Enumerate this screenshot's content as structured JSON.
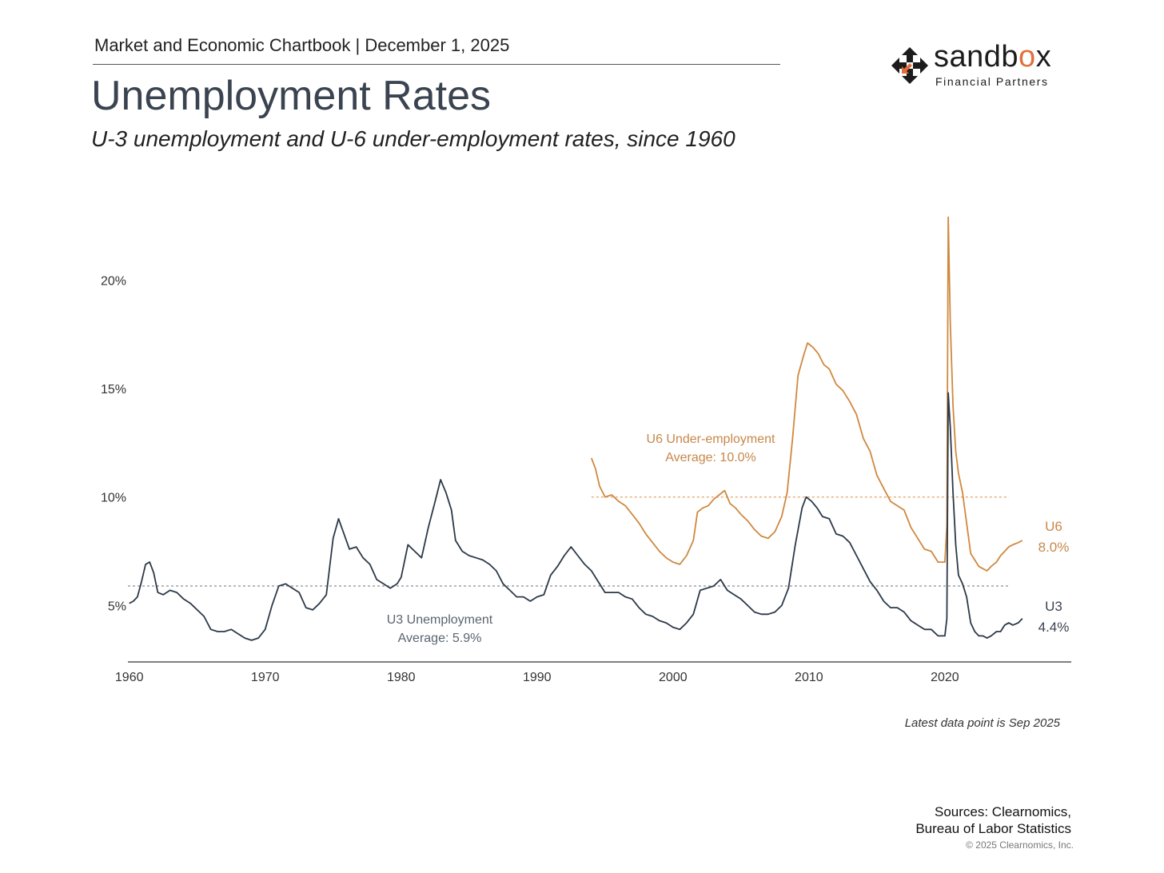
{
  "header": {
    "chartbook_line": "Market and Economic Chartbook | December 1, 2025",
    "title": "Unemployment Rates",
    "subtitle": "U-3 unemployment and U-6 under-employment rates, since 1960"
  },
  "logo": {
    "name_part1": "sandb",
    "name_o": "o",
    "name_part2": "x",
    "tagline": "Financial Partners"
  },
  "footer": {
    "latest_note": "Latest data point is Sep 2025",
    "sources_line1": "Sources: Clearnomics,",
    "sources_line2": "Bureau of Labor Statistics",
    "copyright": "© 2025 Clearnomics, Inc."
  },
  "colors": {
    "u3": "#2b3948",
    "u6": "#d0883f",
    "axis": "#555555",
    "avg_u3": "#8a8f96",
    "avg_u6": "#e0a36a"
  },
  "chart_data": {
    "type": "line",
    "x_range": [
      1959.9,
      2029.3
    ],
    "ylim": [
      2.4,
      23.4
    ],
    "y_ticks": [
      {
        "value": 5,
        "label": "5%"
      },
      {
        "value": 10,
        "label": "10%"
      },
      {
        "value": 15,
        "label": "15%"
      },
      {
        "value": 20,
        "label": "20%"
      }
    ],
    "x_ticks": [
      {
        "value": 1960,
        "label": "1960"
      },
      {
        "value": 1970,
        "label": "1970"
      },
      {
        "value": 1980,
        "label": "1980"
      },
      {
        "value": 1990,
        "label": "1990"
      },
      {
        "value": 2000,
        "label": "2000"
      },
      {
        "value": 2010,
        "label": "2010"
      },
      {
        "value": 2020,
        "label": "2020"
      }
    ],
    "series": [
      {
        "name": "U3 Unemployment",
        "key": "u3",
        "average": 5.9,
        "annotation_line1": "U3 Unemployment",
        "annotation_line2": "Average: 5.9%",
        "end_label": "U3",
        "end_value": "4.4%",
        "points": [
          [
            1960.0,
            5.1
          ],
          [
            1960.3,
            5.2
          ],
          [
            1960.6,
            5.4
          ],
          [
            1960.9,
            6.1
          ],
          [
            1961.2,
            6.9
          ],
          [
            1961.5,
            7.0
          ],
          [
            1961.8,
            6.5
          ],
          [
            1962.1,
            5.6
          ],
          [
            1962.5,
            5.5
          ],
          [
            1963.0,
            5.7
          ],
          [
            1963.5,
            5.6
          ],
          [
            1964.0,
            5.3
          ],
          [
            1964.5,
            5.1
          ],
          [
            1965.0,
            4.8
          ],
          [
            1965.5,
            4.5
          ],
          [
            1966.0,
            3.9
          ],
          [
            1966.5,
            3.8
          ],
          [
            1967.0,
            3.8
          ],
          [
            1967.5,
            3.9
          ],
          [
            1968.0,
            3.7
          ],
          [
            1968.5,
            3.5
          ],
          [
            1969.0,
            3.4
          ],
          [
            1969.5,
            3.5
          ],
          [
            1970.0,
            3.9
          ],
          [
            1970.5,
            5.0
          ],
          [
            1971.0,
            5.9
          ],
          [
            1971.5,
            6.0
          ],
          [
            1972.0,
            5.8
          ],
          [
            1972.5,
            5.6
          ],
          [
            1973.0,
            4.9
          ],
          [
            1973.5,
            4.8
          ],
          [
            1974.0,
            5.1
          ],
          [
            1974.5,
            5.5
          ],
          [
            1975.0,
            8.1
          ],
          [
            1975.4,
            9.0
          ],
          [
            1975.8,
            8.3
          ],
          [
            1976.2,
            7.6
          ],
          [
            1976.7,
            7.7
          ],
          [
            1977.2,
            7.2
          ],
          [
            1977.7,
            6.9
          ],
          [
            1978.2,
            6.2
          ],
          [
            1978.7,
            6.0
          ],
          [
            1979.2,
            5.8
          ],
          [
            1979.7,
            6.0
          ],
          [
            1980.0,
            6.3
          ],
          [
            1980.5,
            7.8
          ],
          [
            1981.0,
            7.5
          ],
          [
            1981.5,
            7.2
          ],
          [
            1982.0,
            8.6
          ],
          [
            1982.5,
            9.8
          ],
          [
            1982.9,
            10.8
          ],
          [
            1983.3,
            10.2
          ],
          [
            1983.7,
            9.4
          ],
          [
            1984.0,
            8.0
          ],
          [
            1984.5,
            7.5
          ],
          [
            1985.0,
            7.3
          ],
          [
            1985.5,
            7.2
          ],
          [
            1986.0,
            7.1
          ],
          [
            1986.5,
            6.9
          ],
          [
            1987.0,
            6.6
          ],
          [
            1987.5,
            6.0
          ],
          [
            1988.0,
            5.7
          ],
          [
            1988.5,
            5.4
          ],
          [
            1989.0,
            5.4
          ],
          [
            1989.5,
            5.2
          ],
          [
            1990.0,
            5.4
          ],
          [
            1990.5,
            5.5
          ],
          [
            1991.0,
            6.4
          ],
          [
            1991.5,
            6.8
          ],
          [
            1992.0,
            7.3
          ],
          [
            1992.5,
            7.7
          ],
          [
            1993.0,
            7.3
          ],
          [
            1993.5,
            6.9
          ],
          [
            1994.0,
            6.6
          ],
          [
            1994.5,
            6.1
          ],
          [
            1995.0,
            5.6
          ],
          [
            1995.5,
            5.6
          ],
          [
            1996.0,
            5.6
          ],
          [
            1996.5,
            5.4
          ],
          [
            1997.0,
            5.3
          ],
          [
            1997.5,
            4.9
          ],
          [
            1998.0,
            4.6
          ],
          [
            1998.5,
            4.5
          ],
          [
            1999.0,
            4.3
          ],
          [
            1999.5,
            4.2
          ],
          [
            2000.0,
            4.0
          ],
          [
            2000.5,
            3.9
          ],
          [
            2001.0,
            4.2
          ],
          [
            2001.5,
            4.6
          ],
          [
            2002.0,
            5.7
          ],
          [
            2002.5,
            5.8
          ],
          [
            2003.0,
            5.9
          ],
          [
            2003.5,
            6.2
          ],
          [
            2004.0,
            5.7
          ],
          [
            2004.5,
            5.5
          ],
          [
            2005.0,
            5.3
          ],
          [
            2005.5,
            5.0
          ],
          [
            2006.0,
            4.7
          ],
          [
            2006.5,
            4.6
          ],
          [
            2007.0,
            4.6
          ],
          [
            2007.5,
            4.7
          ],
          [
            2008.0,
            5.0
          ],
          [
            2008.5,
            5.8
          ],
          [
            2009.0,
            7.8
          ],
          [
            2009.5,
            9.5
          ],
          [
            2009.8,
            10.0
          ],
          [
            2010.2,
            9.8
          ],
          [
            2010.6,
            9.5
          ],
          [
            2011.0,
            9.1
          ],
          [
            2011.5,
            9.0
          ],
          [
            2012.0,
            8.3
          ],
          [
            2012.5,
            8.2
          ],
          [
            2013.0,
            7.9
          ],
          [
            2013.5,
            7.3
          ],
          [
            2014.0,
            6.7
          ],
          [
            2014.5,
            6.1
          ],
          [
            2015.0,
            5.7
          ],
          [
            2015.5,
            5.2
          ],
          [
            2016.0,
            4.9
          ],
          [
            2016.5,
            4.9
          ],
          [
            2017.0,
            4.7
          ],
          [
            2017.5,
            4.3
          ],
          [
            2018.0,
            4.1
          ],
          [
            2018.5,
            3.9
          ],
          [
            2019.0,
            3.9
          ],
          [
            2019.5,
            3.6
          ],
          [
            2020.0,
            3.6
          ],
          [
            2020.15,
            4.4
          ],
          [
            2020.25,
            14.8
          ],
          [
            2020.4,
            13.2
          ],
          [
            2020.6,
            10.2
          ],
          [
            2020.8,
            7.8
          ],
          [
            2021.0,
            6.4
          ],
          [
            2021.3,
            6.0
          ],
          [
            2021.6,
            5.4
          ],
          [
            2021.9,
            4.2
          ],
          [
            2022.2,
            3.8
          ],
          [
            2022.5,
            3.6
          ],
          [
            2022.8,
            3.6
          ],
          [
            2023.1,
            3.5
          ],
          [
            2023.4,
            3.6
          ],
          [
            2023.8,
            3.8
          ],
          [
            2024.1,
            3.8
          ],
          [
            2024.4,
            4.1
          ],
          [
            2024.7,
            4.2
          ],
          [
            2025.0,
            4.1
          ],
          [
            2025.4,
            4.2
          ],
          [
            2025.7,
            4.4
          ]
        ]
      },
      {
        "name": "U6 Under-employment",
        "key": "u6",
        "average": 10.0,
        "annotation_line1": "U6 Under-employment",
        "annotation_line2": "Average: 10.0%",
        "end_label": "U6",
        "end_value": "8.0%",
        "points": [
          [
            1994.0,
            11.8
          ],
          [
            1994.3,
            11.3
          ],
          [
            1994.6,
            10.5
          ],
          [
            1995.0,
            10.0
          ],
          [
            1995.5,
            10.1
          ],
          [
            1996.0,
            9.8
          ],
          [
            1996.5,
            9.6
          ],
          [
            1997.0,
            9.2
          ],
          [
            1997.5,
            8.8
          ],
          [
            1998.0,
            8.3
          ],
          [
            1998.5,
            7.9
          ],
          [
            1999.0,
            7.5
          ],
          [
            1999.5,
            7.2
          ],
          [
            2000.0,
            7.0
          ],
          [
            2000.5,
            6.9
          ],
          [
            2001.0,
            7.3
          ],
          [
            2001.5,
            8.0
          ],
          [
            2001.8,
            9.3
          ],
          [
            2002.2,
            9.5
          ],
          [
            2002.6,
            9.6
          ],
          [
            2003.0,
            9.9
          ],
          [
            2003.4,
            10.1
          ],
          [
            2003.8,
            10.3
          ],
          [
            2004.2,
            9.7
          ],
          [
            2004.6,
            9.5
          ],
          [
            2005.0,
            9.2
          ],
          [
            2005.5,
            8.9
          ],
          [
            2006.0,
            8.5
          ],
          [
            2006.5,
            8.2
          ],
          [
            2007.0,
            8.1
          ],
          [
            2007.5,
            8.4
          ],
          [
            2008.0,
            9.1
          ],
          [
            2008.4,
            10.2
          ],
          [
            2008.8,
            12.7
          ],
          [
            2009.2,
            15.6
          ],
          [
            2009.6,
            16.5
          ],
          [
            2009.9,
            17.1
          ],
          [
            2010.3,
            16.9
          ],
          [
            2010.7,
            16.6
          ],
          [
            2011.1,
            16.1
          ],
          [
            2011.5,
            15.9
          ],
          [
            2012.0,
            15.2
          ],
          [
            2012.5,
            14.9
          ],
          [
            2013.0,
            14.4
          ],
          [
            2013.5,
            13.8
          ],
          [
            2014.0,
            12.7
          ],
          [
            2014.5,
            12.1
          ],
          [
            2015.0,
            11.0
          ],
          [
            2015.5,
            10.4
          ],
          [
            2016.0,
            9.8
          ],
          [
            2016.5,
            9.6
          ],
          [
            2017.0,
            9.4
          ],
          [
            2017.5,
            8.6
          ],
          [
            2018.0,
            8.1
          ],
          [
            2018.5,
            7.6
          ],
          [
            2019.0,
            7.5
          ],
          [
            2019.5,
            7.0
          ],
          [
            2020.0,
            7.0
          ],
          [
            2020.15,
            8.7
          ],
          [
            2020.25,
            22.9
          ],
          [
            2020.4,
            18.0
          ],
          [
            2020.6,
            14.2
          ],
          [
            2020.8,
            12.1
          ],
          [
            2021.0,
            11.1
          ],
          [
            2021.3,
            10.2
          ],
          [
            2021.6,
            8.8
          ],
          [
            2021.9,
            7.4
          ],
          [
            2022.2,
            7.1
          ],
          [
            2022.5,
            6.8
          ],
          [
            2022.8,
            6.7
          ],
          [
            2023.1,
            6.6
          ],
          [
            2023.4,
            6.8
          ],
          [
            2023.8,
            7.0
          ],
          [
            2024.1,
            7.3
          ],
          [
            2024.4,
            7.5
          ],
          [
            2024.7,
            7.7
          ],
          [
            2025.0,
            7.8
          ],
          [
            2025.4,
            7.9
          ],
          [
            2025.7,
            8.0
          ]
        ]
      }
    ]
  }
}
